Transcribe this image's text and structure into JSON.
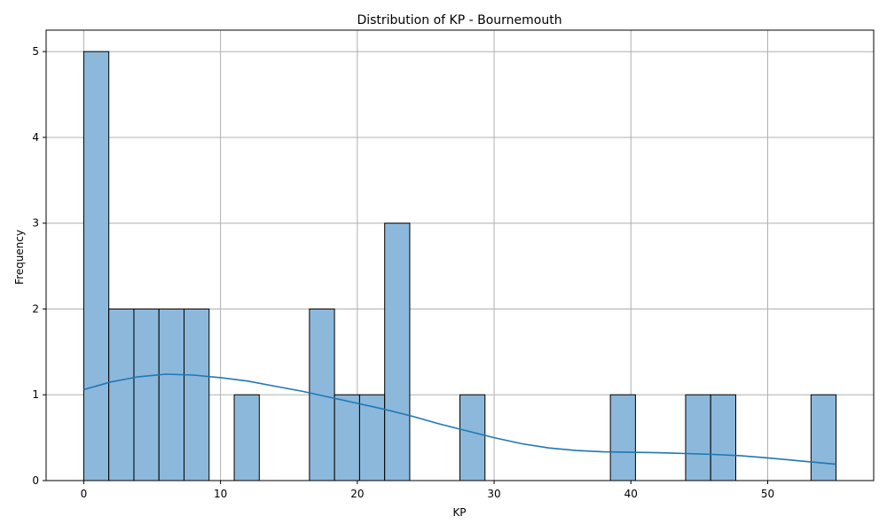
{
  "chart_data": {
    "type": "bar",
    "title": "Distribution of KP - Bournemouth",
    "xlabel": "KP",
    "ylabel": "Frequency",
    "xlim": [
      -2.75,
      57.75
    ],
    "ylim": [
      0,
      5.25
    ],
    "xticks": [
      0,
      10,
      20,
      30,
      40,
      50
    ],
    "yticks": [
      0,
      1,
      2,
      3,
      4,
      5
    ],
    "grid": true,
    "bin_edges": [
      0,
      1.833,
      3.667,
      5.5,
      7.333,
      9.167,
      11,
      12.833,
      14.667,
      16.5,
      18.333,
      20.167,
      22,
      23.833,
      25.667,
      27.5,
      29.333,
      31.167,
      33,
      34.833,
      36.667,
      38.5,
      40.333,
      42.167,
      44,
      45.833,
      47.667,
      49.5,
      51.333,
      53.167,
      55
    ],
    "counts": [
      5,
      2,
      2,
      2,
      2,
      0,
      1,
      0,
      0,
      2,
      1,
      1,
      3,
      0,
      0,
      1,
      0,
      0,
      0,
      0,
      0,
      1,
      0,
      0,
      1,
      1,
      0,
      0,
      0,
      1
    ],
    "bar_color": "#8cb8dc",
    "edge_color": "#000000",
    "kde": {
      "color": "#1f77b4",
      "x": [
        0,
        2,
        4,
        6,
        8,
        10,
        12,
        14,
        16,
        18,
        20,
        22,
        24,
        26,
        28,
        30,
        32,
        34,
        36,
        38,
        40,
        42,
        44,
        46,
        48,
        50,
        52,
        55
      ],
      "y": [
        1.06,
        1.15,
        1.21,
        1.24,
        1.23,
        1.2,
        1.16,
        1.1,
        1.04,
        0.97,
        0.9,
        0.83,
        0.75,
        0.66,
        0.58,
        0.5,
        0.43,
        0.38,
        0.35,
        0.335,
        0.33,
        0.325,
        0.315,
        0.305,
        0.29,
        0.265,
        0.235,
        0.19
      ]
    }
  }
}
